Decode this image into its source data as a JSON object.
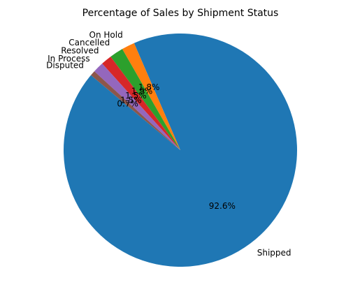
{
  "chart_data": {
    "type": "pie",
    "title": "Percentage of Sales by Shipment Status",
    "start_angle_deg": 140,
    "direction": "counterclockwise",
    "legend": "none",
    "slices": [
      {
        "label": "Shipped",
        "value": 92.6,
        "pct_text": "92.6%",
        "color": "#1f77b4"
      },
      {
        "label": "On Hold",
        "value": 1.8,
        "pct_text": "1.8%",
        "color": "#ff7f0e"
      },
      {
        "label": "Cancelled",
        "value": 1.9,
        "pct_text": "1.9%",
        "color": "#2ca02c"
      },
      {
        "label": "Resolved",
        "value": 1.5,
        "pct_text": "1.5%",
        "color": "#d62728"
      },
      {
        "label": "In Process",
        "value": 1.5,
        "pct_text": "1.5%",
        "color": "#9467bd"
      },
      {
        "label": "Disputed",
        "value": 0.7,
        "pct_text": "0.7%",
        "color": "#8c564b"
      }
    ]
  }
}
